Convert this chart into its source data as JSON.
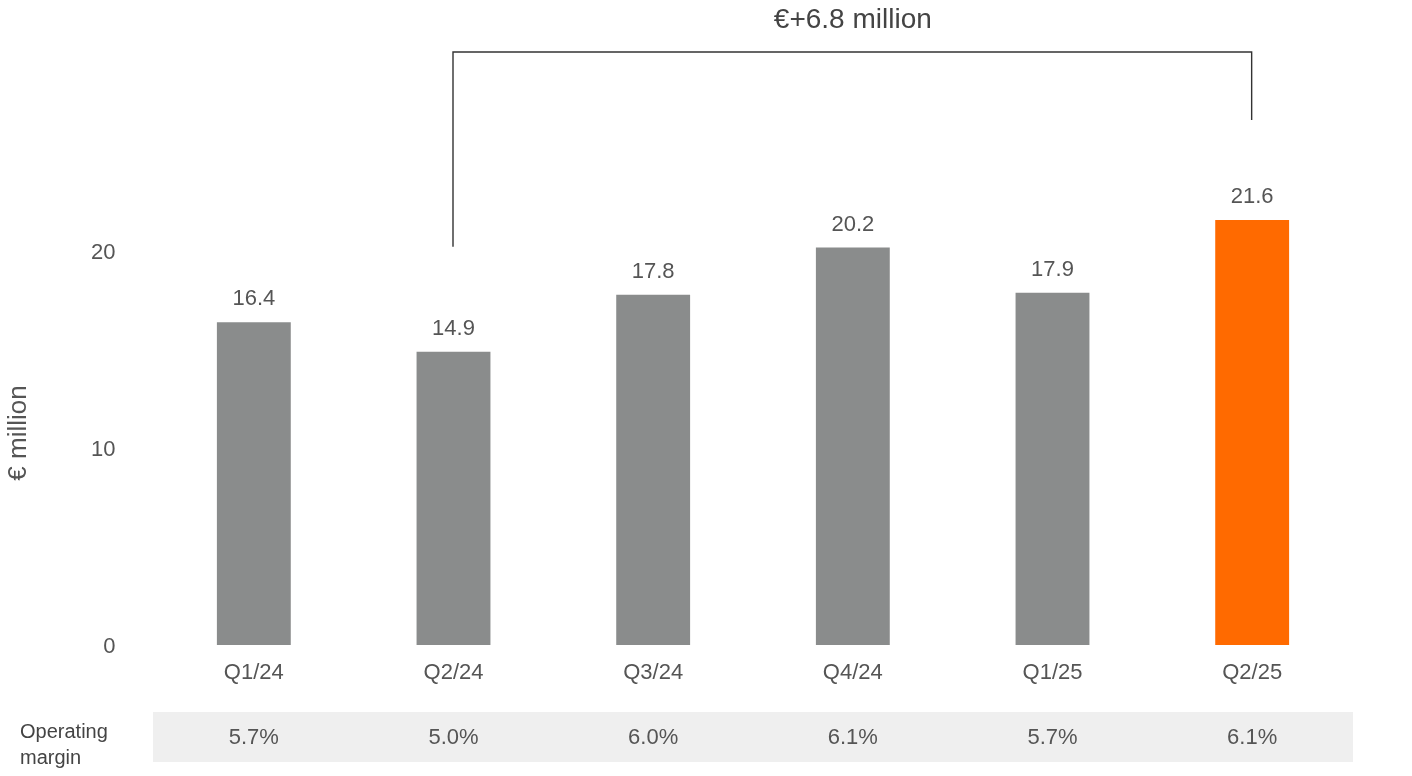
{
  "chart_data": {
    "type": "bar",
    "ylabel": "€ million",
    "categories": [
      "Q1/24",
      "Q2/24",
      "Q3/24",
      "Q4/24",
      "Q1/25",
      "Q2/25"
    ],
    "values": [
      16.4,
      14.9,
      17.8,
      20.2,
      17.9,
      21.6
    ],
    "colors": [
      "#8a8c8c",
      "#8a8c8c",
      "#8a8c8c",
      "#8a8c8c",
      "#8a8c8c",
      "#ff6a00"
    ],
    "ylim": [
      0,
      21.6
    ],
    "yticks": [
      0,
      10,
      20
    ],
    "grid": false,
    "legend": false,
    "data_labels": true,
    "annotations": [
      "€+6.8 million",
      "Operating margin",
      "5.7%",
      "5.0%",
      "6.0%",
      "6.1%",
      "5.7%",
      "6.1%"
    ]
  }
}
